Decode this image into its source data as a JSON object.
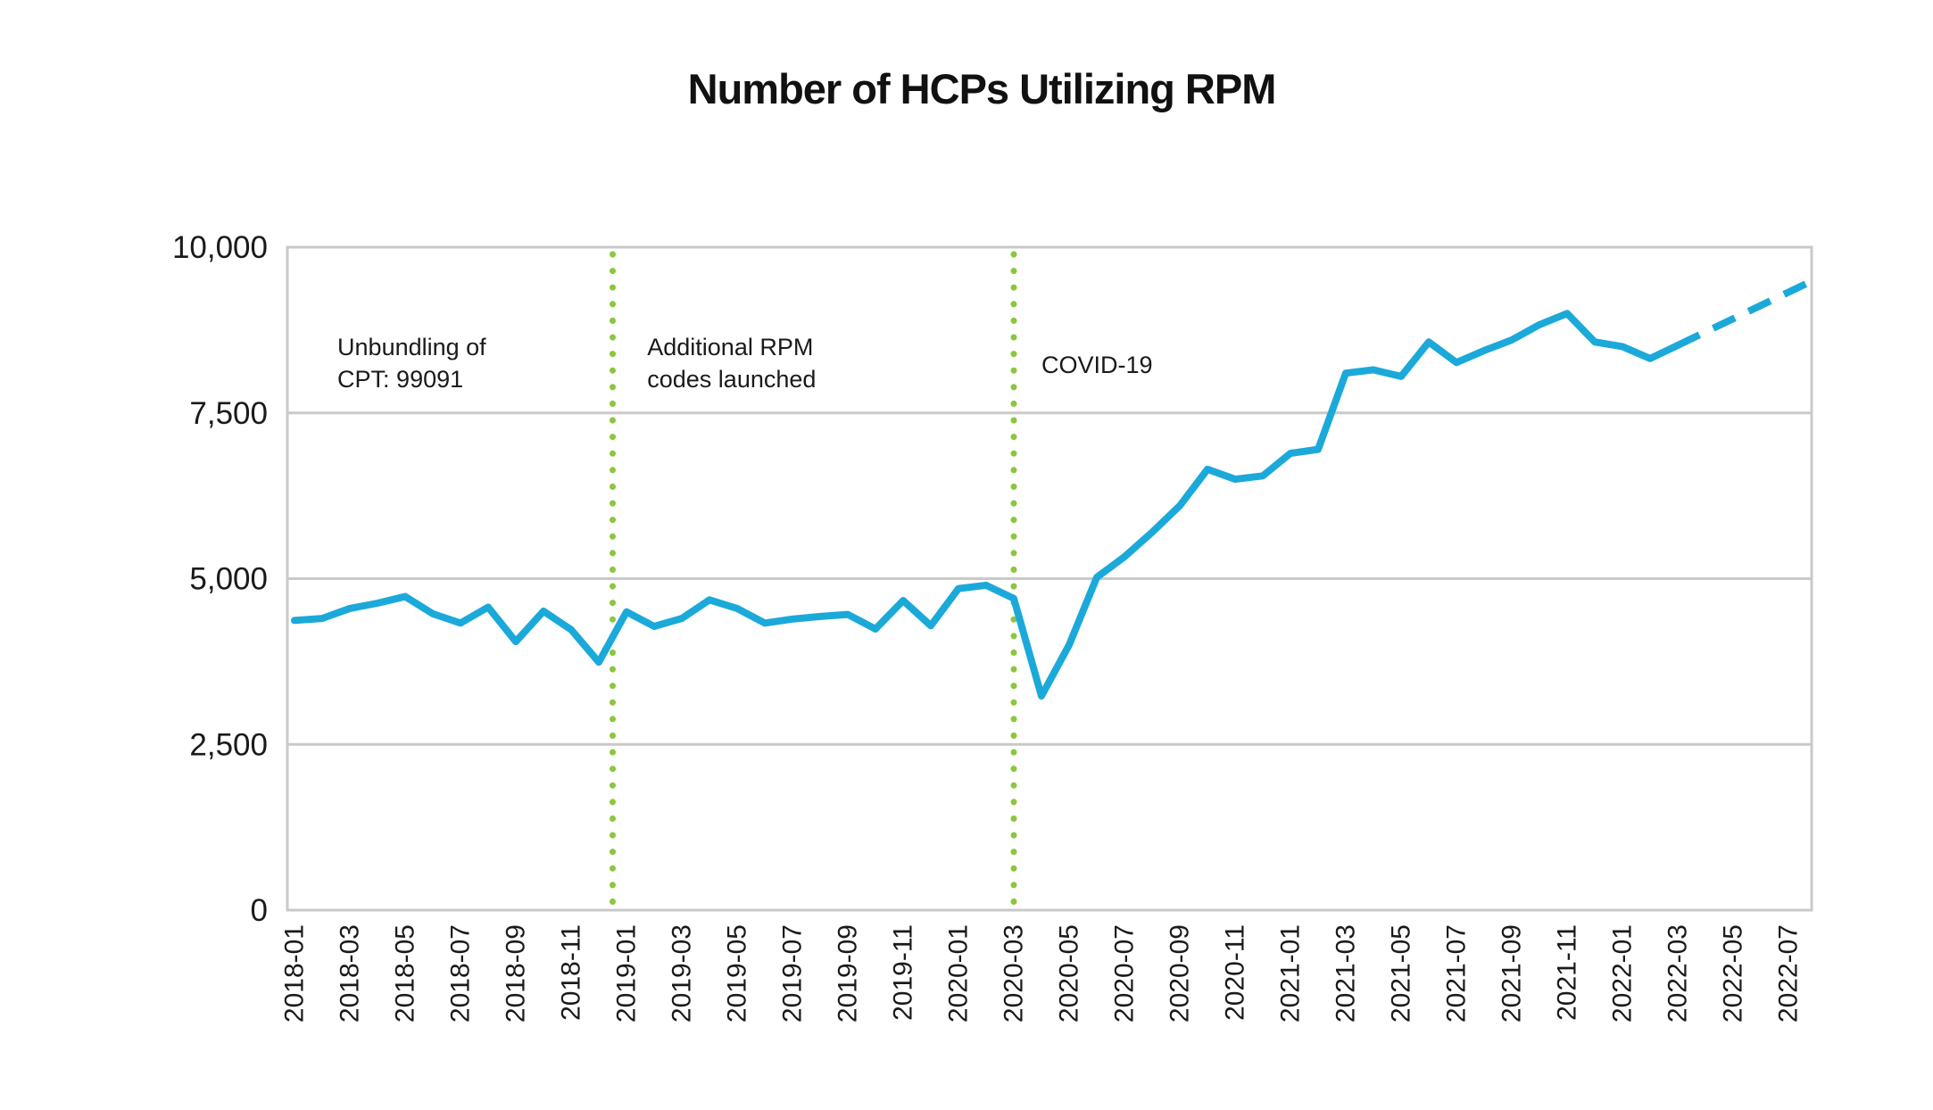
{
  "chart_data": {
    "type": "line",
    "title": "Number of HCPs Utilizing RPM",
    "xlabel": "",
    "ylabel": "",
    "ylim": [
      0,
      10000
    ],
    "yticks": [
      0,
      2500,
      5000,
      7500,
      10000
    ],
    "ytick_labels": [
      "0",
      "2,500",
      "5,000",
      "7,500",
      "10,000"
    ],
    "xtick_every": 2,
    "grid": "horizontal",
    "legend": "none",
    "categories": [
      "2018-01",
      "2018-02",
      "2018-03",
      "2018-04",
      "2018-05",
      "2018-06",
      "2018-07",
      "2018-08",
      "2018-09",
      "2018-10",
      "2018-11",
      "2018-12",
      "2019-01",
      "2019-02",
      "2019-03",
      "2019-04",
      "2019-05",
      "2019-06",
      "2019-07",
      "2019-08",
      "2019-09",
      "2019-10",
      "2019-11",
      "2019-12",
      "2020-01",
      "2020-02",
      "2020-03",
      "2020-04",
      "2020-05",
      "2020-06",
      "2020-07",
      "2020-08",
      "2020-09",
      "2020-10",
      "2020-11",
      "2020-12",
      "2021-01",
      "2021-02",
      "2021-03",
      "2021-04",
      "2021-05",
      "2021-06",
      "2021-07",
      "2021-08",
      "2021-09",
      "2021-10",
      "2021-11",
      "2021-12",
      "2022-01",
      "2022-02",
      "2022-03",
      "2022-04",
      "2022-05",
      "2022-06",
      "2022-07"
    ],
    "series": [
      {
        "name": "HCPs utilizing RPM",
        "values": [
          4370,
          4400,
          4550,
          4630,
          4730,
          4470,
          4330,
          4570,
          4050,
          4510,
          4230,
          3740,
          4500,
          4280,
          4400,
          4680,
          4550,
          4330,
          4390,
          4430,
          4460,
          4240,
          4670,
          4290,
          4850,
          4900,
          4700,
          3230,
          4000,
          5020,
          5330,
          5700,
          6100,
          6650,
          6500,
          6550,
          6890,
          6950,
          8100,
          8150,
          8050,
          8570,
          8260,
          8440,
          8600,
          8830,
          9000,
          8570,
          8500,
          8320,
          8520,
          8720,
          8920,
          9120,
          9320
        ]
      }
    ],
    "projection_start_index": 50,
    "projection_note": "line is dashed from 2022-03 onward and extends to the right edge of the plot",
    "projection_edge_value": 9490,
    "annotations": [
      {
        "lines": [
          "Unbundling of",
          "CPT: 99091"
        ],
        "text_x_index": 1.55,
        "vline_x_index": null
      },
      {
        "lines": [
          "Additional RPM",
          "codes launched"
        ],
        "text_x_index": 12.75,
        "vline_x_index": 11.5
      },
      {
        "lines": [
          "COVID-19"
        ],
        "text_x_index": 27.0,
        "vline_x_index": 26.0
      }
    ],
    "colors": {
      "line": "#1BA9DA",
      "annotation_line": "#8CC63F",
      "grid": "#C9C9C9",
      "text": "#1A1A1A"
    }
  }
}
